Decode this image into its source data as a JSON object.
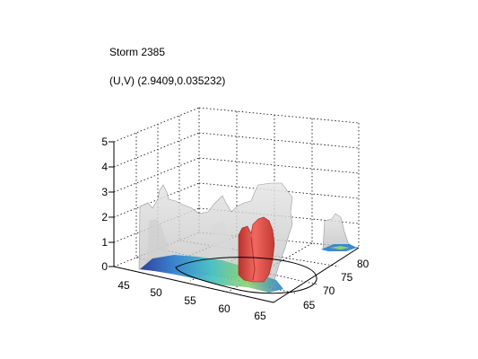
{
  "chart_data": {
    "type": "3d-surface",
    "title": "Storm 2385",
    "subtitle": "(U,V) (2.9409,0.035232)",
    "xlabel": "",
    "ylabel": "",
    "zlabel": "",
    "x_ticks": [
      "45",
      "50",
      "55",
      "60",
      "65"
    ],
    "y_ticks": [
      "65",
      "70",
      "75",
      "80"
    ],
    "z_ticks": [
      "0",
      "1",
      "2",
      "3",
      "4",
      "5"
    ],
    "xlim": [
      44,
      66
    ],
    "ylim": [
      63,
      82
    ],
    "zlim": [
      0,
      5
    ],
    "grid": true,
    "colors": {
      "isosurface_outer": "#c8c8c8",
      "isosurface_core": "#e0443c",
      "base_colormap": [
        "#1e2f9b",
        "#2a7fd0",
        "#3fbfc0",
        "#8fd26a",
        "#d8dd44"
      ],
      "track": "#000000"
    }
  }
}
